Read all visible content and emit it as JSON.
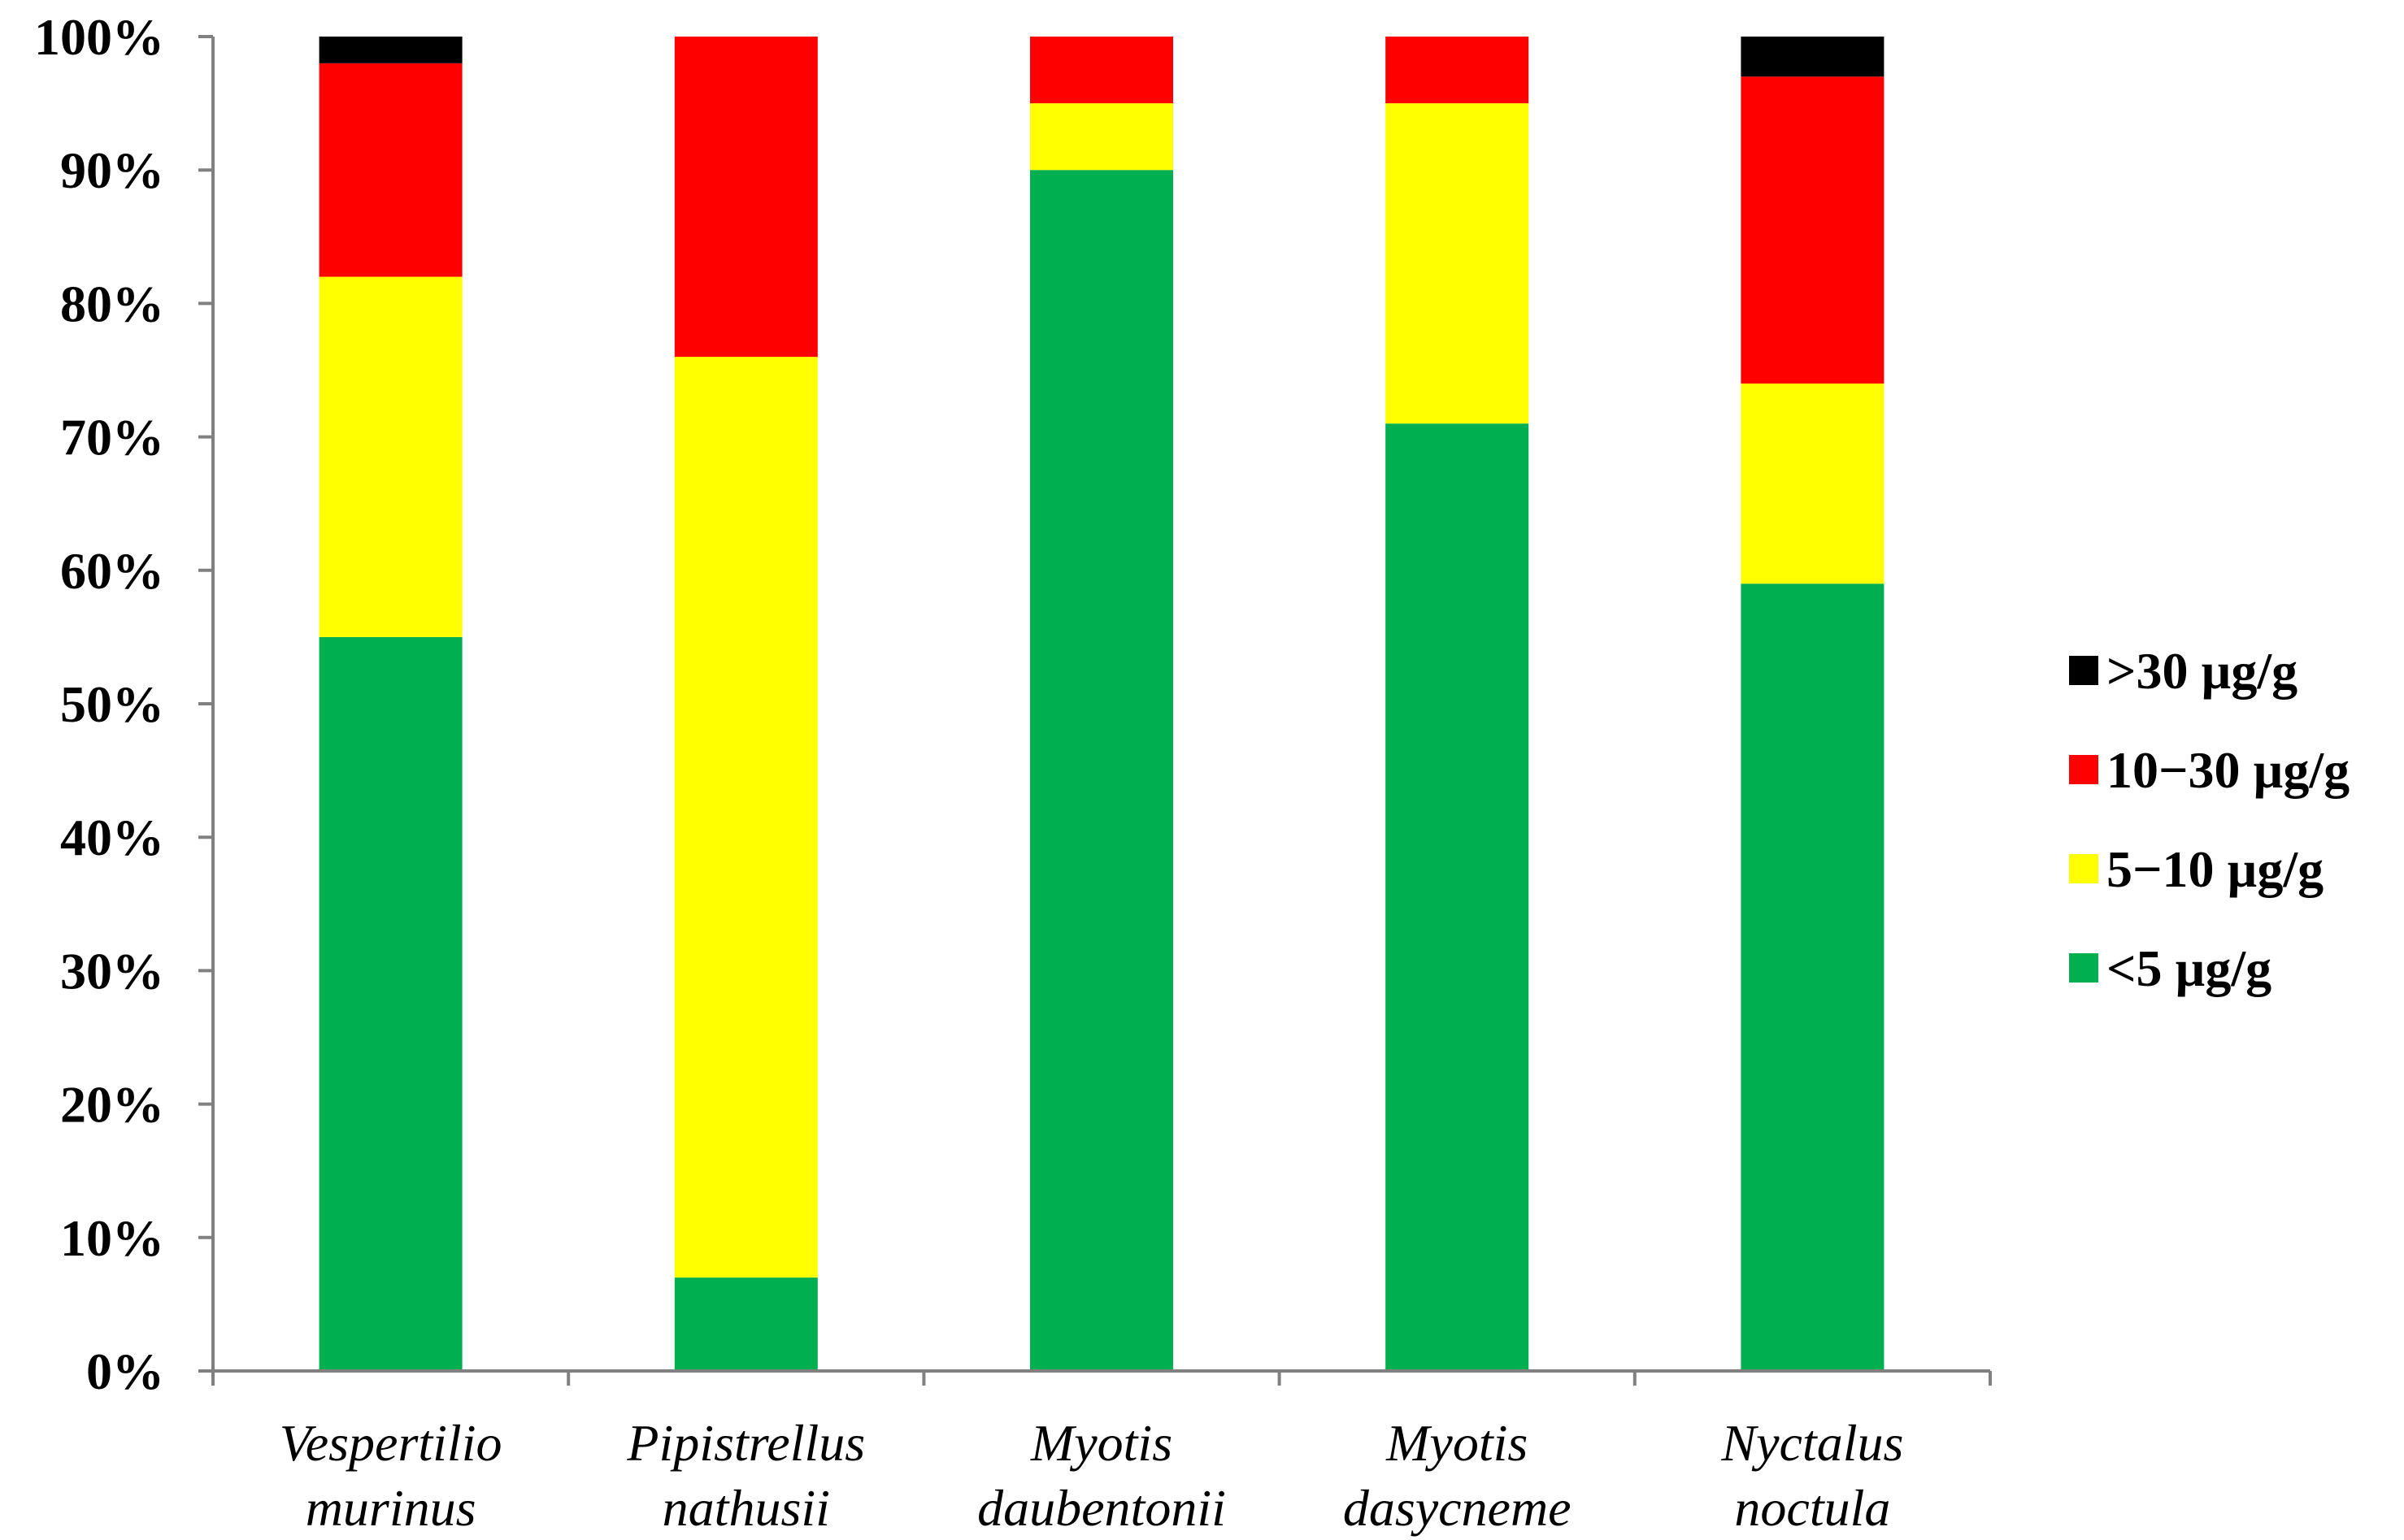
{
  "chart_data": {
    "type": "bar",
    "stacked": true,
    "title": "",
    "xlabel": "",
    "ylabel": "",
    "ylim": [
      0,
      100
    ],
    "y_ticks": [
      "0%",
      "10%",
      "20%",
      "30%",
      "40%",
      "50%",
      "60%",
      "70%",
      "80%",
      "90%",
      "100%"
    ],
    "grid": false,
    "legend_position": "right",
    "categories": [
      [
        "Vespertilio",
        "murinus"
      ],
      [
        "Pipistrellus",
        "nathusii"
      ],
      [
        "Myotis",
        "daubentonii"
      ],
      [
        "Myotis",
        "dasycneme"
      ],
      [
        "Nyctalus",
        "noctula"
      ]
    ],
    "series": [
      {
        "name": "<5 µg/g",
        "color": "#00B050",
        "values": [
          55,
          7,
          90,
          71,
          59
        ]
      },
      {
        "name": "5−10 µg/g",
        "color": "#FFFF00",
        "values": [
          27,
          69,
          5,
          24,
          15
        ]
      },
      {
        "name": "10−30 µg/g",
        "color": "#FF0000",
        "values": [
          16,
          24,
          5,
          5,
          23
        ]
      },
      {
        "name": ">30 µg/g",
        "color": "#000000",
        "values": [
          2,
          0,
          0,
          0,
          3
        ]
      }
    ],
    "legend_order": [
      3,
      2,
      1,
      0
    ]
  }
}
